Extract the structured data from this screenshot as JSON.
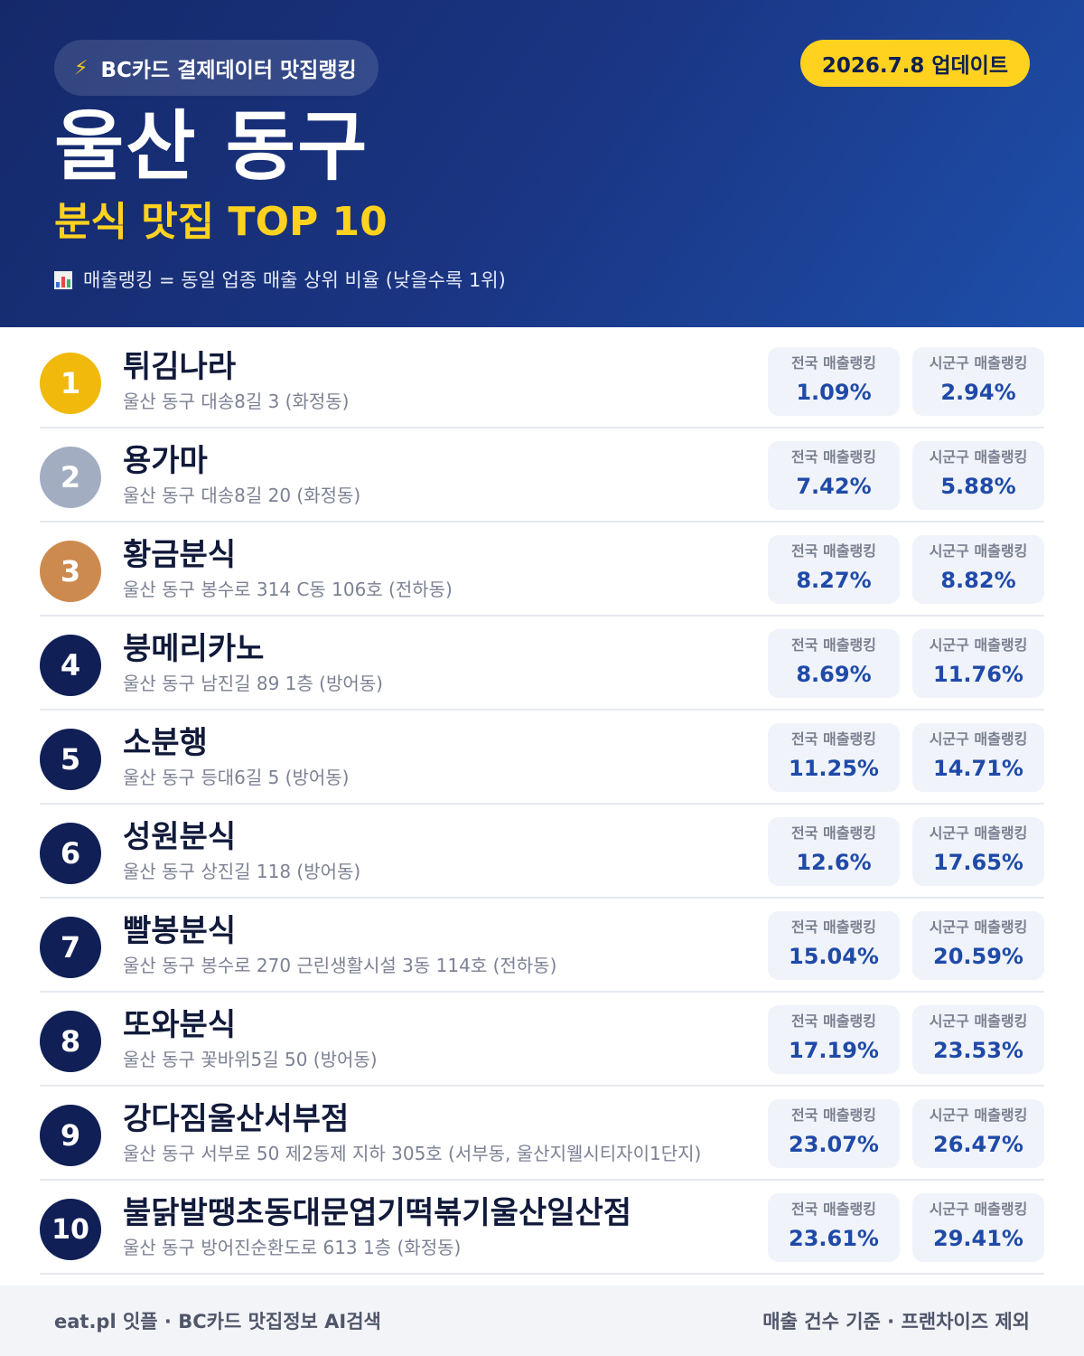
{
  "header": {
    "brand_icon": "lightning-bolt-icon",
    "brand": "BC카드 결제데이터 맛집랭킹",
    "update": "2026.7.8 업데이트",
    "region": "울산 동구",
    "subtitle": "분식 맛집 TOP 10",
    "note_icon": "bar-chart-icon",
    "note": "매출랭킹 = 동일 업종 매출 상위 비율 (낮을수록 1위)"
  },
  "labels": {
    "national": "전국 매출랭킹",
    "local": "시군구 매출랭킹"
  },
  "colors": {
    "gold": "#f0b90b",
    "silver": "#a3adc2",
    "bronze": "#cd8a4f",
    "navy": "#101f55",
    "accent": "#ffd21f"
  },
  "restaurants": [
    {
      "rank": "1",
      "name": "튀김나라",
      "address": "울산 동구 대송8길 3 (화정동)",
      "national": "1.09%",
      "local": "2.94%"
    },
    {
      "rank": "2",
      "name": "용가마",
      "address": "울산 동구 대송8길 20 (화정동)",
      "national": "7.42%",
      "local": "5.88%"
    },
    {
      "rank": "3",
      "name": "황금분식",
      "address": "울산 동구 봉수로 314 C동 106호 (전하동)",
      "national": "8.27%",
      "local": "8.82%"
    },
    {
      "rank": "4",
      "name": "붕메리카노",
      "address": "울산 동구 남진길 89 1층 (방어동)",
      "national": "8.69%",
      "local": "11.76%"
    },
    {
      "rank": "5",
      "name": "소분행",
      "address": "울산 동구 등대6길 5 (방어동)",
      "national": "11.25%",
      "local": "14.71%"
    },
    {
      "rank": "6",
      "name": "성원분식",
      "address": "울산 동구 상진길 118 (방어동)",
      "national": "12.6%",
      "local": "17.65%"
    },
    {
      "rank": "7",
      "name": "빨봉분식",
      "address": "울산 동구 봉수로 270 근린생활시설 3동 114호 (전하동)",
      "national": "15.04%",
      "local": "20.59%"
    },
    {
      "rank": "8",
      "name": "또와분식",
      "address": "울산 동구 꽃바위5길 50 (방어동)",
      "national": "17.19%",
      "local": "23.53%"
    },
    {
      "rank": "9",
      "name": "강다짐울산서부점",
      "address": "울산 동구 서부로 50 제2동제 지하 305호 (서부동, 울산지웰시티자이1단지)",
      "national": "23.07%",
      "local": "26.47%"
    },
    {
      "rank": "10",
      "name": "불닭발땡초동대문엽기떡볶기울산일산점",
      "address": "울산 동구 방어진순환도로 613 1층 (화정동)",
      "national": "23.61%",
      "local": "29.41%"
    }
  ],
  "footer": {
    "left": "eat.pl 잇플 · BC카드 맛집정보 AI검색",
    "right": "매출 건수 기준 · 프랜차이즈 제외"
  }
}
